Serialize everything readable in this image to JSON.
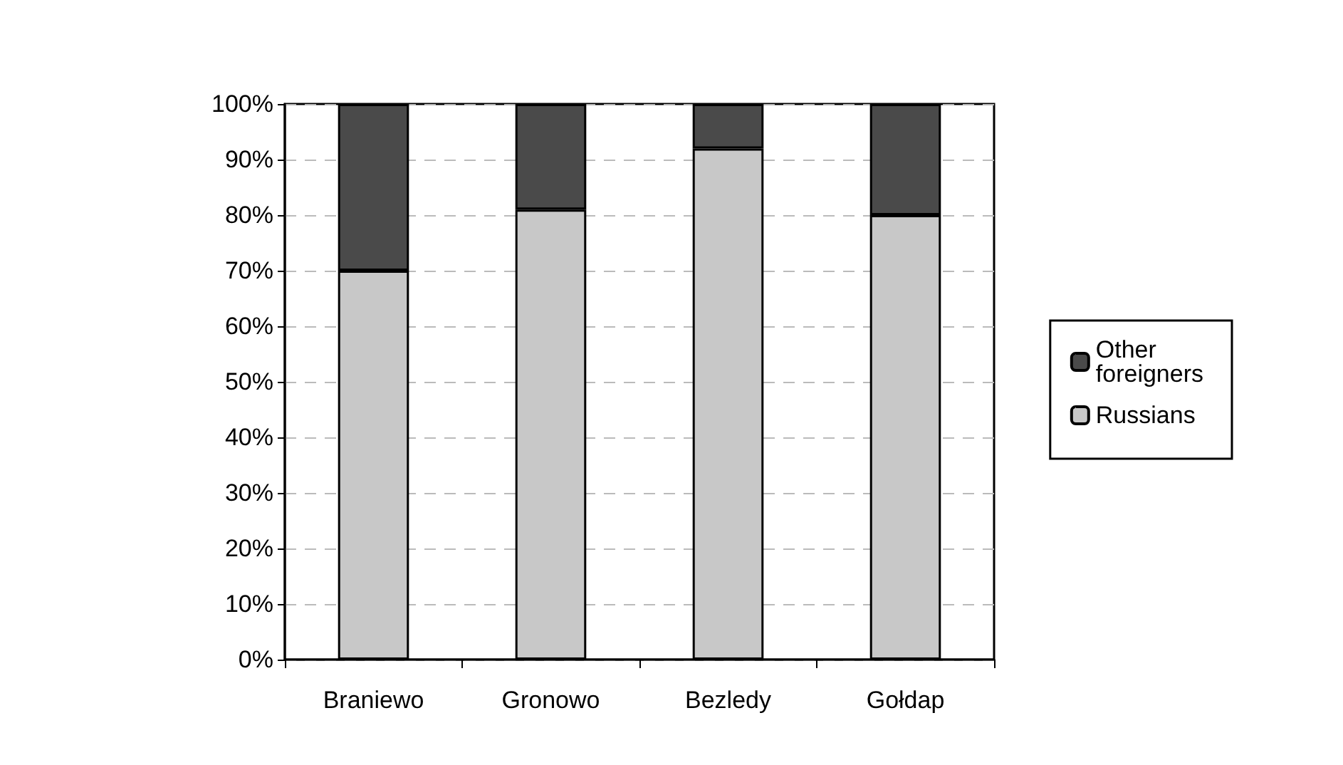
{
  "chart_data": {
    "type": "bar",
    "stacked": true,
    "categories": [
      "Braniewo",
      "Gronowo",
      "Bezledy",
      "Gołdap"
    ],
    "series": [
      {
        "name": "Russians",
        "color": "#c8c8c8",
        "values": [
          70,
          81,
          92,
          80
        ]
      },
      {
        "name": "Other foreigners",
        "color": "#4a4a4a",
        "values": [
          30,
          19,
          8,
          20
        ]
      }
    ],
    "ylim": [
      0,
      100
    ],
    "yticks": [
      {
        "value": 0,
        "label": "0%"
      },
      {
        "value": 10,
        "label": "10%"
      },
      {
        "value": 20,
        "label": "20%"
      },
      {
        "value": 30,
        "label": "30%"
      },
      {
        "value": 40,
        "label": "40%"
      },
      {
        "value": 50,
        "label": "50%"
      },
      {
        "value": 60,
        "label": "60%"
      },
      {
        "value": 70,
        "label": "70%"
      },
      {
        "value": 80,
        "label": "80%"
      },
      {
        "value": 90,
        "label": "90%"
      },
      {
        "value": 100,
        "label": "100%"
      }
    ],
    "grid": "y",
    "legend": "right"
  }
}
